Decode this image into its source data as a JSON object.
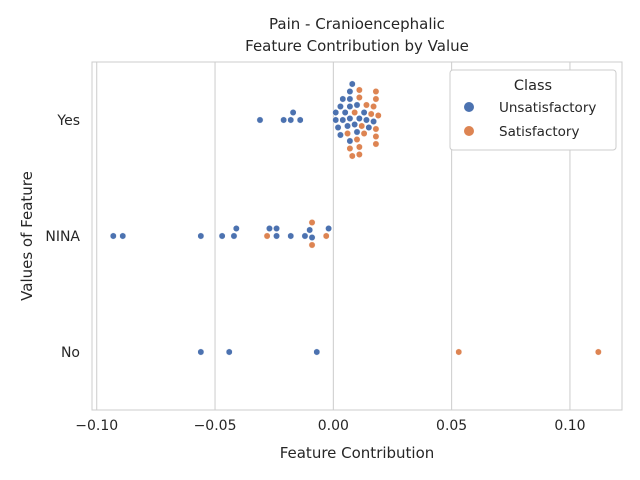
{
  "chart_data": {
    "type": "scatter",
    "subtype": "swarm",
    "title_line1": "Pain - Cranioencephalic",
    "title_line2": "Feature Contribution by Value",
    "xlabel": "Feature Contribution",
    "ylabel": "Values of Feature",
    "categories": [
      "Yes",
      "NINA",
      "No"
    ],
    "xlim": [
      -0.102,
      0.122
    ],
    "xticks": [
      -0.1,
      -0.05,
      0.0,
      0.05,
      0.1
    ],
    "xtick_labels": [
      "−0.10",
      "−0.05",
      "0.00",
      "0.05",
      "0.10"
    ],
    "grid": "vertical",
    "legend": {
      "title": "Class",
      "placement": "top-right",
      "entries": [
        {
          "label": "Unsatisfactory",
          "color": "#4c72b0"
        },
        {
          "label": "Satisfactory",
          "color": "#dd8452"
        }
      ]
    },
    "series": [
      {
        "name": "Unsatisfactory",
        "color": "#4c72b0",
        "points": [
          {
            "category": "Yes",
            "x": -0.031
          },
          {
            "category": "Yes",
            "x": -0.021
          },
          {
            "category": "Yes",
            "x": -0.018
          },
          {
            "category": "Yes",
            "x": -0.017
          },
          {
            "category": "Yes",
            "x": -0.014
          },
          {
            "category": "Yes",
            "x": 0.001
          },
          {
            "category": "Yes",
            "x": 0.001
          },
          {
            "category": "Yes",
            "x": 0.002
          },
          {
            "category": "Yes",
            "x": 0.003
          },
          {
            "category": "Yes",
            "x": 0.003
          },
          {
            "category": "Yes",
            "x": 0.004
          },
          {
            "category": "Yes",
            "x": 0.004
          },
          {
            "category": "Yes",
            "x": 0.005
          },
          {
            "category": "Yes",
            "x": 0.006
          },
          {
            "category": "Yes",
            "x": 0.007
          },
          {
            "category": "Yes",
            "x": 0.007
          },
          {
            "category": "Yes",
            "x": 0.007
          },
          {
            "category": "Yes",
            "x": 0.007
          },
          {
            "category": "Yes",
            "x": 0.007
          },
          {
            "category": "Yes",
            "x": 0.008
          },
          {
            "category": "Yes",
            "x": 0.009
          },
          {
            "category": "Yes",
            "x": 0.01
          },
          {
            "category": "Yes",
            "x": 0.01
          },
          {
            "category": "Yes",
            "x": 0.011
          },
          {
            "category": "Yes",
            "x": 0.013
          },
          {
            "category": "Yes",
            "x": 0.014
          },
          {
            "category": "Yes",
            "x": 0.015
          },
          {
            "category": "Yes",
            "x": 0.017
          },
          {
            "category": "NINA",
            "x": -0.093
          },
          {
            "category": "NINA",
            "x": -0.089
          },
          {
            "category": "NINA",
            "x": -0.056
          },
          {
            "category": "NINA",
            "x": -0.047
          },
          {
            "category": "NINA",
            "x": -0.042
          },
          {
            "category": "NINA",
            "x": -0.041
          },
          {
            "category": "NINA",
            "x": -0.027
          },
          {
            "category": "NINA",
            "x": -0.024
          },
          {
            "category": "NINA",
            "x": -0.024
          },
          {
            "category": "NINA",
            "x": -0.018
          },
          {
            "category": "NINA",
            "x": -0.012
          },
          {
            "category": "NINA",
            "x": -0.01
          },
          {
            "category": "NINA",
            "x": -0.009
          },
          {
            "category": "NINA",
            "x": -0.002
          },
          {
            "category": "No",
            "x": -0.056
          },
          {
            "category": "No",
            "x": -0.044
          },
          {
            "category": "No",
            "x": -0.007
          }
        ]
      },
      {
        "name": "Satisfactory",
        "color": "#dd8452",
        "points": [
          {
            "category": "Yes",
            "x": 0.006
          },
          {
            "category": "Yes",
            "x": 0.007
          },
          {
            "category": "Yes",
            "x": 0.008
          },
          {
            "category": "Yes",
            "x": 0.009
          },
          {
            "category": "Yes",
            "x": 0.01
          },
          {
            "category": "Yes",
            "x": 0.011
          },
          {
            "category": "Yes",
            "x": 0.011
          },
          {
            "category": "Yes",
            "x": 0.011
          },
          {
            "category": "Yes",
            "x": 0.011
          },
          {
            "category": "Yes",
            "x": 0.012
          },
          {
            "category": "Yes",
            "x": 0.013
          },
          {
            "category": "Yes",
            "x": 0.014
          },
          {
            "category": "Yes",
            "x": 0.016
          },
          {
            "category": "Yes",
            "x": 0.017
          },
          {
            "category": "Yes",
            "x": 0.018
          },
          {
            "category": "Yes",
            "x": 0.018
          },
          {
            "category": "Yes",
            "x": 0.018
          },
          {
            "category": "Yes",
            "x": 0.018
          },
          {
            "category": "Yes",
            "x": 0.018
          },
          {
            "category": "Yes",
            "x": 0.019
          },
          {
            "category": "NINA",
            "x": -0.028
          },
          {
            "category": "NINA",
            "x": -0.009
          },
          {
            "category": "NINA",
            "x": -0.009
          },
          {
            "category": "NINA",
            "x": -0.003
          },
          {
            "category": "No",
            "x": 0.053
          },
          {
            "category": "No",
            "x": 0.112
          }
        ]
      }
    ]
  }
}
